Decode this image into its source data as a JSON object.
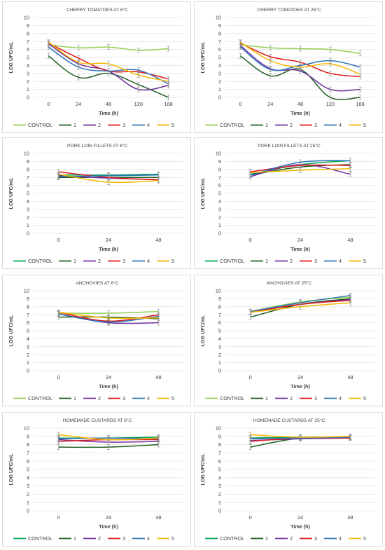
{
  "chart_data": [
    {
      "type": "line",
      "title": "CHERRY TOMATOES AT 6°C",
      "xlabel": "Time (h)",
      "ylabel": "LOG UFC/mL",
      "categories": [
        "0",
        "24",
        "48",
        "120",
        "168"
      ],
      "ylim": [
        0,
        10
      ],
      "yticks": [
        "0",
        "1",
        "2",
        "3",
        "4",
        "5",
        "6",
        "7",
        "8",
        "9",
        "10"
      ],
      "grid": true,
      "legend": "bottom",
      "series": [
        {
          "name": "CONTROL",
          "color": "#92d050",
          "values": [
            6.6,
            6.2,
            6.3,
            5.9,
            6.1
          ]
        },
        {
          "name": "1",
          "color": "#1e5c1e",
          "values": [
            5.2,
            2.5,
            3.0,
            1.6,
            0.0
          ]
        },
        {
          "name": "2",
          "color": "#7030a0",
          "values": [
            6.7,
            4.2,
            3.3,
            1.0,
            1.5
          ]
        },
        {
          "name": "3",
          "color": "#e0191c",
          "values": [
            6.8,
            4.9,
            3.3,
            3.2,
            2.3
          ]
        },
        {
          "name": "4",
          "color": "#2e75b6",
          "values": [
            6.3,
            3.8,
            3.3,
            3.4,
            1.7
          ]
        },
        {
          "name": "5",
          "color": "#f5b800",
          "values": [
            6.9,
            4.4,
            4.2,
            2.8,
            2.0
          ]
        }
      ]
    },
    {
      "type": "line",
      "title": "CHERRY TOMATOES AT 25°C",
      "xlabel": "Time (h)",
      "ylabel": "LOG UFC/mL",
      "categories": [
        "0",
        "24",
        "48",
        "120",
        "168"
      ],
      "ylim": [
        0,
        10
      ],
      "yticks": [
        "0",
        "1",
        "2",
        "3",
        "4",
        "5",
        "6",
        "7",
        "8",
        "9",
        "10"
      ],
      "grid": true,
      "legend": "bottom",
      "series": [
        {
          "name": "CONTROL",
          "color": "#92d050",
          "values": [
            6.6,
            6.2,
            6.1,
            6.0,
            5.5
          ]
        },
        {
          "name": "1",
          "color": "#1e5c1e",
          "values": [
            5.2,
            2.7,
            3.5,
            0.0,
            0.0
          ]
        },
        {
          "name": "2",
          "color": "#7030a0",
          "values": [
            6.5,
            3.6,
            3.3,
            1.0,
            1.0
          ]
        },
        {
          "name": "3",
          "color": "#e0191c",
          "values": [
            6.8,
            5.1,
            4.4,
            3.0,
            2.6
          ]
        },
        {
          "name": "4",
          "color": "#2e75b6",
          "values": [
            6.3,
            3.5,
            4.0,
            4.6,
            3.8
          ]
        },
        {
          "name": "5",
          "color": "#f5b800",
          "values": [
            6.9,
            4.6,
            3.8,
            4.2,
            2.9
          ]
        }
      ]
    },
    {
      "type": "line",
      "title": "PORK LOIN FILLETS AT 6°C",
      "xlabel": "Time (h)",
      "ylabel": "LOG UFC/mL",
      "categories": [
        "0",
        "24",
        "48"
      ],
      "ylim": [
        0,
        10
      ],
      "yticks": [
        "0",
        "1",
        "2",
        "3",
        "4",
        "5",
        "6",
        "7",
        "8",
        "9",
        "10"
      ],
      "grid": true,
      "legend": "bottom",
      "series": [
        {
          "name": "CONTROL",
          "color": "#00a650",
          "values": [
            7.3,
            7.3,
            7.4
          ]
        },
        {
          "name": "1",
          "color": "#1e5c1e",
          "values": [
            7.0,
            7.0,
            7.0
          ]
        },
        {
          "name": "2",
          "color": "#7030a0",
          "values": [
            7.2,
            6.9,
            6.7
          ]
        },
        {
          "name": "3",
          "color": "#e0191c",
          "values": [
            7.7,
            7.0,
            6.7
          ]
        },
        {
          "name": "4",
          "color": "#2e75b6",
          "values": [
            7.1,
            7.2,
            7.3
          ]
        },
        {
          "name": "5",
          "color": "#f5b800",
          "values": [
            7.4,
            6.4,
            6.6
          ]
        }
      ]
    },
    {
      "type": "line",
      "title": "PORK LOIN FILLETS AT 25°C",
      "xlabel": "Time (h)",
      "ylabel": "LOG UFC/mL",
      "categories": [
        "0",
        "24",
        "48"
      ],
      "ylim": [
        0,
        10
      ],
      "yticks": [
        "0",
        "1",
        "2",
        "3",
        "4",
        "5",
        "6",
        "7",
        "8",
        "9",
        "10"
      ],
      "grid": true,
      "legend": "bottom",
      "series": [
        {
          "name": "CONTROL",
          "color": "#00a650",
          "values": [
            7.4,
            8.6,
            9.1
          ]
        },
        {
          "name": "1",
          "color": "#1e5c1e",
          "values": [
            7.3,
            8.3,
            8.6
          ]
        },
        {
          "name": "2",
          "color": "#7030a0",
          "values": [
            7.1,
            8.6,
            7.4
          ]
        },
        {
          "name": "3",
          "color": "#e0191c",
          "values": [
            7.7,
            8.5,
            8.5
          ]
        },
        {
          "name": "4",
          "color": "#2e75b6",
          "values": [
            7.3,
            8.9,
            9.1
          ]
        },
        {
          "name": "5",
          "color": "#f5b800",
          "values": [
            7.6,
            7.9,
            8.1
          ]
        }
      ]
    },
    {
      "type": "line",
      "title": "ANCHOVIES AT 6°C",
      "xlabel": "Time (h)",
      "ylabel": "LOG UFC/mL",
      "categories": [
        "0",
        "24",
        "48"
      ],
      "ylim": [
        0,
        10
      ],
      "yticks": [
        "0",
        "1",
        "2",
        "3",
        "4",
        "5",
        "6",
        "7",
        "8",
        "9",
        "10"
      ],
      "grid": true,
      "legend": "bottom",
      "series": [
        {
          "name": "CONTROL",
          "color": "#92d050",
          "values": [
            7.2,
            7.2,
            7.4
          ]
        },
        {
          "name": "1",
          "color": "#1e5c1e",
          "values": [
            6.7,
            6.7,
            6.5
          ]
        },
        {
          "name": "2",
          "color": "#7030a0",
          "values": [
            7.1,
            6.0,
            6.0
          ]
        },
        {
          "name": "3",
          "color": "#e0191c",
          "values": [
            7.3,
            6.2,
            7.0
          ]
        },
        {
          "name": "4",
          "color": "#2e75b6",
          "values": [
            7.1,
            6.1,
            6.8
          ]
        },
        {
          "name": "5",
          "color": "#f5b800",
          "values": [
            7.3,
            6.6,
            6.6
          ]
        }
      ]
    },
    {
      "type": "line",
      "title": "ANCHOVIES AT 25°C",
      "xlabel": "Time (h)",
      "ylabel": "LOG UFC/mL",
      "categories": [
        "0",
        "24",
        "48"
      ],
      "ylim": [
        0,
        10
      ],
      "yticks": [
        "0",
        "1",
        "2",
        "3",
        "4",
        "5",
        "6",
        "7",
        "8",
        "9",
        "10"
      ],
      "grid": true,
      "legend": "bottom",
      "series": [
        {
          "name": "CONTROL",
          "color": "#92d050",
          "values": [
            7.4,
            8.6,
            9.2
          ]
        },
        {
          "name": "1",
          "color": "#1e5c1e",
          "values": [
            6.7,
            8.3,
            9.0
          ]
        },
        {
          "name": "2",
          "color": "#7030a0",
          "values": [
            7.3,
            8.3,
            8.9
          ]
        },
        {
          "name": "3",
          "color": "#e0191c",
          "values": [
            7.3,
            8.3,
            8.8
          ]
        },
        {
          "name": "4",
          "color": "#2e75b6",
          "values": [
            7.4,
            8.5,
            9.4
          ]
        },
        {
          "name": "5",
          "color": "#f5b800",
          "values": [
            7.3,
            8.0,
            8.5
          ]
        }
      ]
    },
    {
      "type": "line",
      "title": "HOMEMADE CUSTARDS AT 6°C",
      "xlabel": "Time (h)",
      "ylabel": "LOG UFC/mL",
      "categories": [
        "0",
        "24",
        "48"
      ],
      "ylim": [
        0,
        10
      ],
      "yticks": [
        "0",
        "1",
        "2",
        "3",
        "4",
        "5",
        "6",
        "7",
        "8",
        "9",
        "10"
      ],
      "grid": true,
      "legend": "bottom",
      "series": [
        {
          "name": "CONTROL",
          "color": "#00a650",
          "values": [
            8.8,
            8.8,
            8.9
          ]
        },
        {
          "name": "1",
          "color": "#1e5c1e",
          "values": [
            7.7,
            7.7,
            8.0
          ]
        },
        {
          "name": "2",
          "color": "#7030a0",
          "values": [
            8.6,
            8.3,
            8.4
          ]
        },
        {
          "name": "3",
          "color": "#e0191c",
          "values": [
            8.4,
            8.6,
            8.6
          ]
        },
        {
          "name": "4",
          "color": "#2e75b6",
          "values": [
            8.7,
            8.8,
            8.7
          ]
        },
        {
          "name": "5",
          "color": "#f5b800",
          "values": [
            9.2,
            8.6,
            8.8
          ]
        }
      ]
    },
    {
      "type": "line",
      "title": "HOMEMADE CUSTARDS AT  25°C",
      "xlabel": "Time (h)",
      "ylabel": "LOG UFC/mL",
      "categories": [
        "0",
        "24",
        "48"
      ],
      "ylim": [
        0,
        10
      ],
      "yticks": [
        "0",
        "1",
        "2",
        "3",
        "4",
        "5",
        "6",
        "7",
        "8",
        "9",
        "10"
      ],
      "grid": true,
      "legend": "bottom",
      "series": [
        {
          "name": "CONTROL",
          "color": "#00a650",
          "values": [
            8.8,
            8.9,
            8.9
          ]
        },
        {
          "name": "1",
          "color": "#1e5c1e",
          "values": [
            7.7,
            8.8,
            8.8
          ]
        },
        {
          "name": "2",
          "color": "#7030a0",
          "values": [
            8.5,
            8.7,
            8.8
          ]
        },
        {
          "name": "3",
          "color": "#e0191c",
          "values": [
            8.4,
            8.8,
            8.8
          ]
        },
        {
          "name": "4",
          "color": "#2e75b6",
          "values": [
            8.7,
            8.8,
            8.9
          ]
        },
        {
          "name": "5",
          "color": "#f5b800",
          "values": [
            9.2,
            8.9,
            9.0
          ]
        }
      ]
    }
  ]
}
